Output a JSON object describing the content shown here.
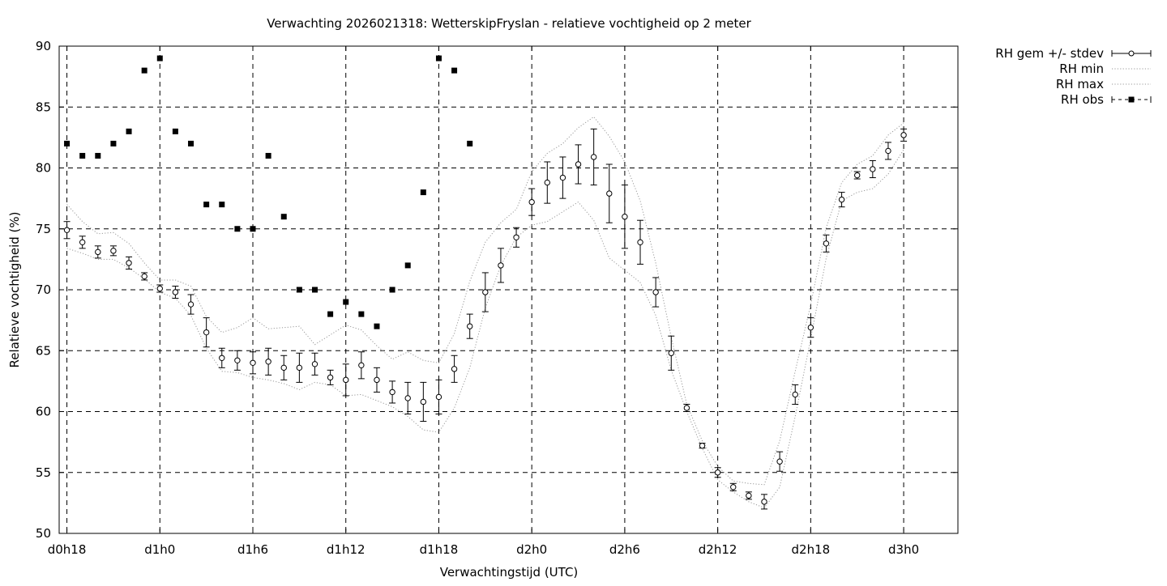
{
  "chart_data": {
    "type": "scatter",
    "title": "Verwachting 2026021318: WetterskipFryslan - relatieve vochtigheid op 2 meter",
    "xlabel": "Verwachtingstijd (UTC)",
    "ylabel": "Relatieve vochtigheid (%)",
    "xlim": [
      -0.5,
      57.5
    ],
    "ylim": [
      50,
      90
    ],
    "grid": true,
    "legend_position": "top-right",
    "x_ticks": [
      {
        "x": 0,
        "label": "d0h18"
      },
      {
        "x": 6,
        "label": "d1h0"
      },
      {
        "x": 12,
        "label": "d1h6"
      },
      {
        "x": 18,
        "label": "d1h12"
      },
      {
        "x": 24,
        "label": "d1h18"
      },
      {
        "x": 30,
        "label": "d2h0"
      },
      {
        "x": 36,
        "label": "d2h6"
      },
      {
        "x": 42,
        "label": "d2h12"
      },
      {
        "x": 48,
        "label": "d2h18"
      },
      {
        "x": 54,
        "label": "d3h0"
      }
    ],
    "y_ticks": [
      50,
      55,
      60,
      65,
      70,
      75,
      80,
      85,
      90
    ],
    "series": [
      {
        "name": "RH gem +/- stdev",
        "style": "errorbars",
        "x": [
          0,
          1,
          2,
          3,
          4,
          5,
          6,
          7,
          8,
          9,
          10,
          11,
          12,
          13,
          14,
          15,
          16,
          17,
          18,
          19,
          20,
          21,
          22,
          23,
          24,
          25,
          26,
          27,
          28,
          29,
          30,
          31,
          32,
          33,
          34,
          35,
          36,
          37,
          38,
          39,
          40,
          41,
          42,
          43,
          44,
          45,
          46,
          47,
          48,
          49,
          50,
          51,
          52,
          53,
          54
        ],
        "y": [
          74.9,
          73.9,
          73.1,
          73.2,
          72.2,
          71.1,
          70.1,
          69.8,
          68.8,
          66.5,
          64.4,
          64.2,
          64.0,
          64.1,
          63.6,
          63.6,
          63.9,
          62.8,
          62.6,
          63.8,
          62.6,
          61.6,
          61.1,
          60.8,
          61.2,
          63.5,
          67.0,
          69.8,
          72.0,
          74.3,
          77.2,
          78.8,
          79.2,
          80.3,
          80.9,
          77.9,
          76.0,
          73.9,
          69.8,
          64.8,
          60.3,
          57.2,
          55.0,
          53.8,
          53.1,
          52.6,
          55.9,
          61.4,
          66.9,
          73.8,
          77.4,
          79.4,
          79.9,
          81.4,
          82.7
        ],
        "stdev": [
          0.7,
          0.5,
          0.5,
          0.4,
          0.5,
          0.3,
          0.3,
          0.5,
          0.8,
          1.2,
          0.8,
          0.8,
          0.9,
          1.1,
          1.0,
          1.2,
          0.9,
          0.6,
          1.3,
          1.1,
          1.0,
          0.9,
          1.3,
          1.6,
          1.4,
          1.1,
          1.0,
          1.6,
          1.4,
          0.8,
          1.1,
          1.7,
          1.7,
          1.6,
          2.3,
          2.4,
          2.6,
          1.8,
          1.2,
          1.4,
          0.3,
          0.2,
          0.4,
          0.3,
          0.3,
          0.6,
          0.8,
          0.8,
          0.8,
          0.7,
          0.6,
          0.3,
          0.7,
          0.7,
          0.5
        ]
      },
      {
        "name": "RH min",
        "style": "dotted",
        "x": [
          0,
          1,
          2,
          3,
          4,
          5,
          6,
          7,
          8,
          9,
          10,
          11,
          12,
          13,
          14,
          15,
          16,
          17,
          18,
          19,
          20,
          21,
          22,
          23,
          24,
          25,
          26,
          27,
          28,
          29,
          30,
          31,
          32,
          33,
          34,
          35,
          36,
          37,
          38,
          39,
          40,
          41,
          42,
          43,
          44,
          45,
          46,
          47,
          48,
          49,
          50,
          51,
          52,
          53,
          54
        ],
        "y": [
          73.4,
          73.0,
          72.5,
          72.5,
          71.8,
          70.9,
          69.8,
          69.3,
          67.9,
          65.2,
          63.3,
          63.2,
          62.8,
          62.6,
          62.3,
          61.8,
          62.4,
          62.2,
          61.3,
          61.4,
          60.9,
          60.4,
          59.6,
          58.5,
          58.3,
          60.3,
          63.6,
          68.5,
          72.0,
          74.3,
          75.3,
          75.6,
          76.4,
          77.2,
          75.7,
          72.6,
          71.6,
          70.6,
          67.9,
          63.4,
          60.0,
          57.0,
          54.4,
          53.4,
          52.6,
          52.1,
          53.8,
          59.6,
          66.0,
          72.6,
          77.3,
          78.0,
          78.3,
          79.5,
          81.5
        ]
      },
      {
        "name": "RH max",
        "style": "dotted",
        "x": [
          0,
          1,
          2,
          3,
          4,
          5,
          6,
          7,
          8,
          9,
          10,
          11,
          12,
          13,
          14,
          15,
          16,
          17,
          18,
          19,
          20,
          21,
          22,
          23,
          24,
          25,
          26,
          27,
          28,
          29,
          30,
          31,
          32,
          33,
          34,
          35,
          36,
          37,
          38,
          39,
          40,
          41,
          42,
          43,
          44,
          45,
          46,
          47,
          48,
          49,
          50,
          51,
          52,
          53,
          54
        ],
        "y": [
          77.0,
          75.6,
          74.6,
          74.7,
          73.8,
          72.2,
          70.8,
          70.8,
          70.3,
          67.8,
          66.5,
          66.9,
          67.7,
          66.8,
          66.9,
          67.0,
          65.5,
          66.3,
          67.1,
          66.7,
          65.4,
          64.3,
          64.9,
          64.2,
          64.0,
          66.4,
          70.7,
          73.9,
          75.5,
          76.6,
          79.7,
          81.2,
          82.0,
          83.3,
          84.2,
          82.6,
          80.5,
          77.3,
          72.2,
          66.1,
          60.6,
          57.6,
          55.5,
          54.3,
          54.1,
          54.0,
          57.6,
          63.3,
          68.8,
          75.1,
          78.8,
          80.3,
          81.0,
          82.7,
          83.7
        ]
      },
      {
        "name": "RH obs",
        "style": "points",
        "x": [
          0,
          1,
          2,
          3,
          4,
          5,
          6,
          7,
          8,
          9,
          10,
          11,
          12,
          13,
          14,
          15,
          16,
          17,
          18,
          19,
          20,
          21,
          22,
          23,
          24,
          25,
          26
        ],
        "y": [
          82,
          81,
          81,
          82,
          83,
          88,
          89,
          83,
          82,
          77,
          77,
          75,
          75,
          81,
          76,
          70,
          70,
          68,
          69,
          68,
          67,
          70,
          72,
          78,
          89,
          88,
          82
        ]
      }
    ]
  }
}
